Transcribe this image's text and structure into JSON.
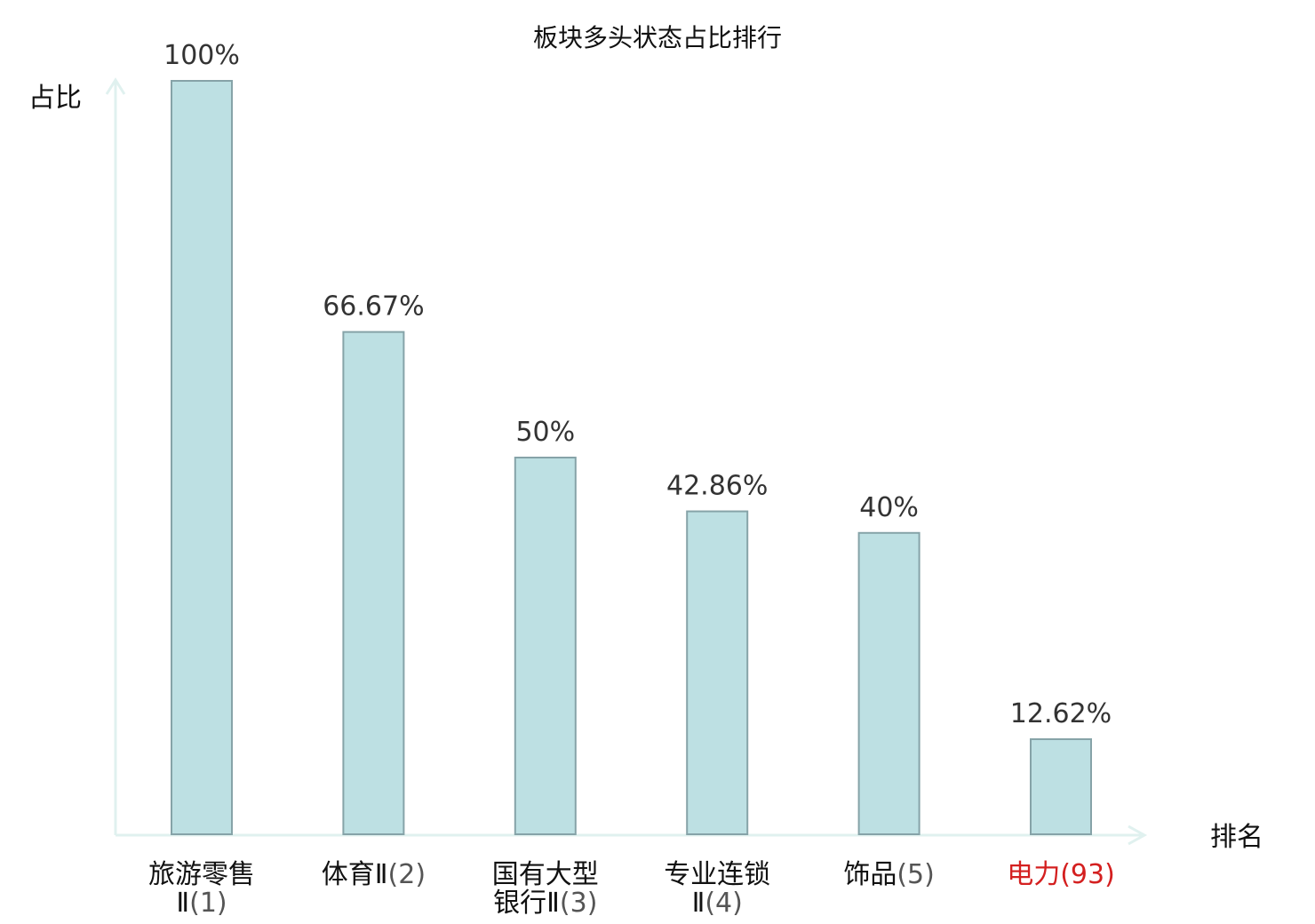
{
  "chart_data": {
    "type": "bar",
    "title": "板块多头状态占比排行",
    "ylabel": "占比",
    "xlabel": "排名",
    "ylim": [
      0,
      100
    ],
    "grid": false,
    "categories": [
      {
        "name_lines": [
          "旅游零售",
          "Ⅱ"
        ],
        "rank": "(1)",
        "highlight": false
      },
      {
        "name_lines": [
          "体育Ⅱ"
        ],
        "rank": "(2)",
        "highlight": false
      },
      {
        "name_lines": [
          "国有大型",
          "银行Ⅱ"
        ],
        "rank": "(3)",
        "highlight": false
      },
      {
        "name_lines": [
          "专业连锁",
          "Ⅱ"
        ],
        "rank": "(4)",
        "highlight": false
      },
      {
        "name_lines": [
          "饰品"
        ],
        "rank": "(5)",
        "highlight": false
      },
      {
        "name_lines": [
          "电力"
        ],
        "rank": "(93)",
        "highlight": true
      }
    ],
    "values": [
      100,
      66.67,
      50,
      42.86,
      40,
      12.62
    ],
    "value_labels": [
      "100%",
      "66.67%",
      "50%",
      "42.86%",
      "40%",
      "12.62%"
    ],
    "colors": {
      "bar_fill": "#bde0e3",
      "bar_stroke": "#86a3a8",
      "axis": "#e0f1ef",
      "highlight": "#d42020"
    }
  }
}
